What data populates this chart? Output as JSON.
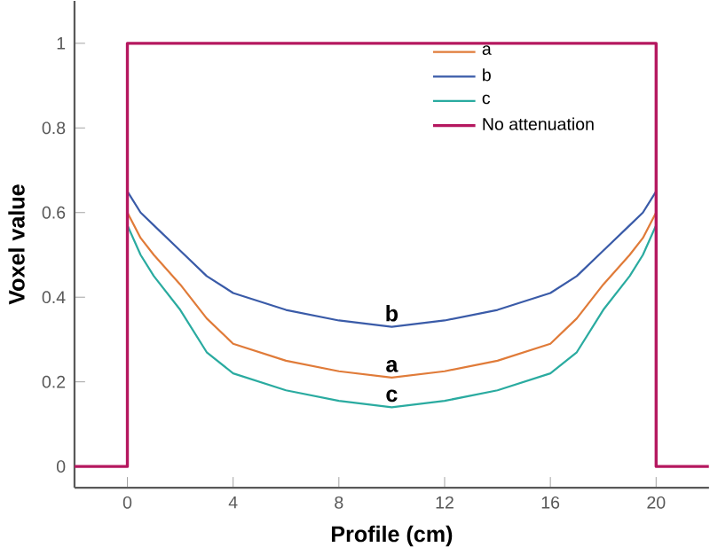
{
  "chart_data": {
    "type": "line",
    "xlabel": "Profile (cm)",
    "ylabel": "Voxel value",
    "xlim": [
      -2,
      22
    ],
    "ylim": [
      -0.05,
      1.1
    ],
    "xticks": [
      0,
      4,
      8,
      12,
      16,
      20
    ],
    "yticks": [
      0,
      0.2,
      0.4,
      0.6,
      0.8,
      1
    ],
    "grid": false,
    "legend": "top right",
    "marker": "none",
    "line_style": "solid",
    "series": [
      {
        "name": "a",
        "color": "#e07b39",
        "x": [
          0,
          0.5,
          1,
          2,
          3,
          4,
          6,
          8,
          10,
          12,
          14,
          16,
          17,
          18,
          19,
          19.5,
          20
        ],
        "values": [
          0.6,
          0.54,
          0.5,
          0.43,
          0.35,
          0.29,
          0.25,
          0.225,
          0.21,
          0.225,
          0.25,
          0.29,
          0.35,
          0.43,
          0.5,
          0.54,
          0.6
        ]
      },
      {
        "name": "b",
        "color": "#3a5ba8",
        "x": [
          0,
          0.5,
          1,
          2,
          3,
          4,
          6,
          8,
          10,
          12,
          14,
          16,
          17,
          18,
          19,
          19.5,
          20
        ],
        "values": [
          0.65,
          0.6,
          0.57,
          0.51,
          0.45,
          0.41,
          0.37,
          0.345,
          0.33,
          0.345,
          0.37,
          0.41,
          0.45,
          0.51,
          0.57,
          0.6,
          0.65
        ]
      },
      {
        "name": "c",
        "color": "#2aaba0",
        "x": [
          0,
          0.5,
          1,
          2,
          3,
          4,
          6,
          8,
          10,
          12,
          14,
          16,
          17,
          18,
          19,
          19.5,
          20
        ],
        "values": [
          0.57,
          0.5,
          0.45,
          0.37,
          0.27,
          0.22,
          0.18,
          0.155,
          0.14,
          0.155,
          0.18,
          0.22,
          0.27,
          0.37,
          0.45,
          0.5,
          0.57
        ]
      },
      {
        "name": "No attenuation",
        "type": "step",
        "color": "#b5175f",
        "x": [
          -2,
          0,
          20,
          22
        ],
        "values": [
          0,
          1,
          0,
          0
        ]
      }
    ]
  }
}
